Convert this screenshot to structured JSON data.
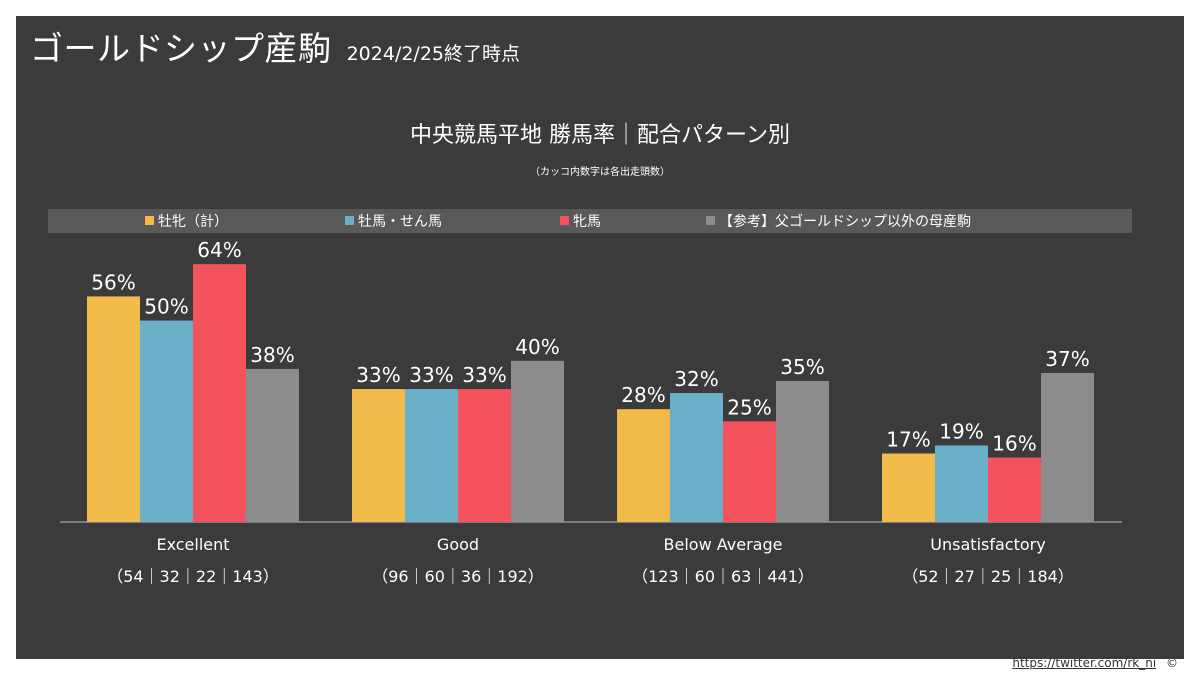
{
  "header": {
    "title": "ゴールドシップ産駒",
    "subtitle": "2024/2/25終了時点"
  },
  "footer": {
    "link": "https://twitter.com/rk_ni",
    "copyright": "©"
  },
  "colors": {
    "panel_bg": "#3b3b3b",
    "legend_bg": "#595959",
    "axis": "#bfbfbf",
    "text": "#ffffff"
  },
  "chart_data": {
    "type": "bar",
    "title": "中央競馬平地 勝馬率｜配合パターン別",
    "subtitle": "（カッコ内数字は各出走頭数）",
    "legend_position": "top",
    "grid": false,
    "ylim": [
      0,
      70
    ],
    "categories": [
      "Excellent",
      "Good",
      "Below Average",
      "Unsatisfactory"
    ],
    "category_counts": [
      "（54｜32｜22｜143）",
      "（96｜60｜36｜192）",
      "（123｜60｜63｜441）",
      "（52｜27｜25｜184）"
    ],
    "series": [
      {
        "name": "牡牝（計）",
        "color": "#f0bb48",
        "values": [
          56,
          33,
          28,
          17
        ],
        "labels": [
          "56%",
          "33%",
          "28%",
          "17%"
        ]
      },
      {
        "name": "牡馬・せん馬",
        "color": "#6ab0c9",
        "values": [
          50,
          33,
          32,
          19
        ],
        "labels": [
          "50%",
          "33%",
          "32%",
          "19%"
        ]
      },
      {
        "name": "牝馬",
        "color": "#f4525c",
        "values": [
          64,
          33,
          25,
          16
        ],
        "labels": [
          "64%",
          "33%",
          "25%",
          "16%"
        ]
      },
      {
        "name": "【参考】父ゴールドシップ以外の母産駒",
        "color": "#8c8c8c",
        "values": [
          38,
          40,
          35,
          37
        ],
        "labels": [
          "38%",
          "40%",
          "35%",
          "37%"
        ]
      }
    ]
  }
}
